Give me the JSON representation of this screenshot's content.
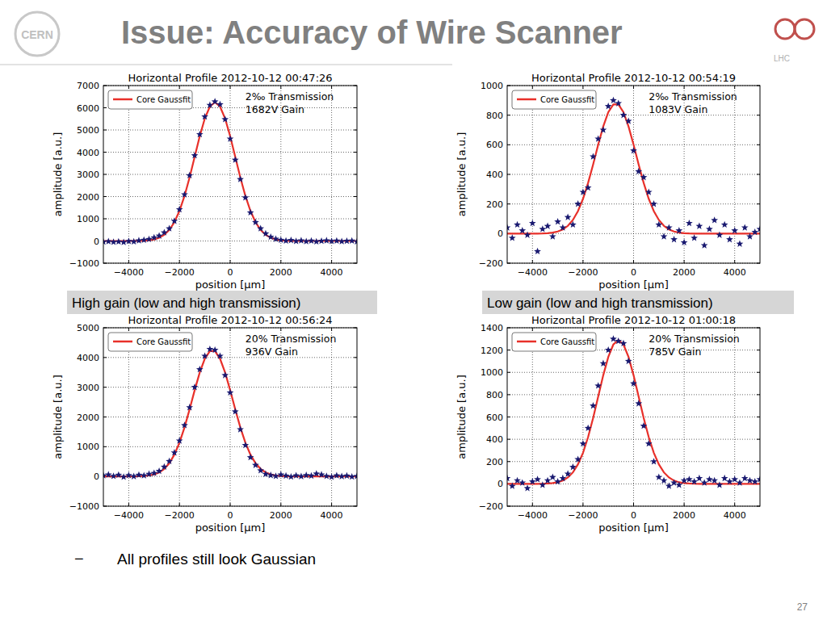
{
  "slide": {
    "title": "Issue: Accuracy of Wire Scanner",
    "logo_left": "CERN",
    "logo_right": "LHC",
    "captions": [
      "High gain (low and high transmission)",
      "Low gain (low and high transmission)"
    ],
    "bullet_marker": "−",
    "bullet": "All profiles still look Gaussian",
    "page_number": "27"
  },
  "chart_data": [
    {
      "type": "scatter",
      "title": "Horizontal Profile 2012-10-12 00:47:26",
      "x_label": "position [μm]",
      "y_label": "amplitude [a.u.]",
      "annotations": [
        "2‰ Transmission",
        "1682V Gain"
      ],
      "x": [
        -5000,
        -4800,
        -4600,
        -4400,
        -4200,
        -4000,
        -3800,
        -3600,
        -3400,
        -3200,
        -3000,
        -2800,
        -2600,
        -2400,
        -2200,
        -2000,
        -1800,
        -1600,
        -1400,
        -1200,
        -1000,
        -800,
        -600,
        -400,
        -200,
        0,
        200,
        400,
        600,
        800,
        1000,
        1200,
        1400,
        1600,
        1800,
        2000,
        2200,
        2400,
        2600,
        2800,
        3000,
        3200,
        3400,
        3600,
        3800,
        4000,
        4200,
        4400,
        4600,
        4800,
        5000
      ],
      "series": [
        {
          "type": "scatter",
          "marker": "star",
          "color": "#191970",
          "values": [
            -40,
            -20,
            -50,
            -30,
            -60,
            -10,
            -30,
            20,
            40,
            80,
            150,
            230,
            380,
            560,
            900,
            1420,
            2090,
            2950,
            3850,
            4800,
            5600,
            6120,
            6280,
            6150,
            5480,
            4600,
            3650,
            2780,
            1950,
            1280,
            840,
            560,
            330,
            180,
            90,
            40,
            10,
            30,
            -10,
            20,
            -20,
            10,
            -30,
            0,
            20,
            -10,
            10,
            -20,
            0,
            10,
            -30
          ]
        },
        {
          "name": "Core Gaussfit",
          "type": "line",
          "line_style": "solid",
          "color": "#e8302a",
          "values": [
            0,
            0,
            0,
            0,
            0,
            0,
            2,
            6,
            14,
            32,
            69,
            143,
            274,
            498,
            846,
            1352,
            2029,
            2861,
            3791,
            4718,
            5516,
            6056,
            6250,
            6056,
            5516,
            4718,
            3791,
            2861,
            2029,
            1352,
            846,
            498,
            274,
            143,
            69,
            32,
            14,
            6,
            2,
            0,
            0,
            0,
            0,
            0,
            0,
            0,
            0,
            0,
            0,
            0,
            0
          ]
        }
      ],
      "xlim": [
        -5000,
        5000
      ],
      "xticks": [
        {
          "value": -4000,
          "label": "−4000"
        },
        {
          "value": -2000,
          "label": "−2000"
        },
        0,
        2000,
        4000
      ],
      "ylim": [
        -1000,
        7000
      ],
      "yticks": [
        {
          "value": -1000,
          "label": "−1000"
        },
        0,
        1000,
        2000,
        3000,
        4000,
        5000,
        6000,
        7000
      ],
      "grid": true,
      "legend": "upper left"
    },
    {
      "type": "scatter",
      "title": "Horizontal Profile 2012-10-12 00:54:19",
      "x_label": "position [μm]",
      "y_label": "amplitude [a.u.]",
      "annotations": [
        "2‰ Transmission",
        "1083V Gain"
      ],
      "x": [
        -5000,
        -4800,
        -4600,
        -4400,
        -4200,
        -4000,
        -3800,
        -3600,
        -3400,
        -3200,
        -3000,
        -2800,
        -2600,
        -2400,
        -2200,
        -2000,
        -1800,
        -1600,
        -1400,
        -1200,
        -1000,
        -800,
        -600,
        -400,
        -200,
        0,
        200,
        400,
        600,
        800,
        1000,
        1200,
        1400,
        1600,
        1800,
        2000,
        2200,
        2400,
        2600,
        2800,
        3000,
        3200,
        3400,
        3600,
        3800,
        4000,
        4200,
        4400,
        4600,
        4800,
        5000
      ],
      "series": [
        {
          "type": "scatter",
          "marker": "star",
          "color": "#191970",
          "values": [
            40,
            -30,
            60,
            20,
            -10,
            70,
            -120,
            30,
            50,
            -20,
            80,
            40,
            110,
            60,
            200,
            280,
            310,
            520,
            640,
            700,
            860,
            900,
            880,
            800,
            760,
            560,
            420,
            380,
            280,
            200,
            60,
            -20,
            40,
            -40,
            20,
            -60,
            70,
            -30,
            50,
            -80,
            30,
            90,
            -10,
            60,
            -40,
            20,
            -70,
            40,
            -20,
            10,
            30
          ]
        },
        {
          "name": "Core Gaussfit",
          "type": "line",
          "line_style": "solid",
          "color": "#e8302a",
          "values": [
            0,
            0,
            0,
            0,
            0,
            0,
            0,
            1,
            3,
            7,
            14,
            28,
            52,
            92,
            152,
            235,
            342,
            467,
            600,
            724,
            820,
            873,
            873,
            820,
            724,
            600,
            467,
            342,
            235,
            152,
            92,
            52,
            28,
            14,
            7,
            3,
            1,
            0,
            0,
            0,
            0,
            0,
            0,
            0,
            0,
            0,
            0,
            0,
            0,
            0,
            0
          ]
        }
      ],
      "xlim": [
        -5000,
        5000
      ],
      "xticks": [
        {
          "value": -4000,
          "label": "−4000"
        },
        {
          "value": -2000,
          "label": "−2000"
        },
        0,
        2000,
        4000
      ],
      "ylim": [
        -200,
        1000
      ],
      "yticks": [
        {
          "value": -200,
          "label": "−200"
        },
        0,
        200,
        400,
        600,
        800,
        1000
      ],
      "grid": true,
      "legend": "upper left"
    },
    {
      "type": "scatter",
      "title": "Horizontal Profile 2012-10-12 00:56:24",
      "x_label": "position [μm]",
      "y_label": "amplitude [a.u.]",
      "annotations": [
        "20% Transmission",
        "936V Gain"
      ],
      "x": [
        -5000,
        -4800,
        -4600,
        -4400,
        -4200,
        -4000,
        -3800,
        -3600,
        -3400,
        -3200,
        -3000,
        -2800,
        -2600,
        -2400,
        -2200,
        -2000,
        -1800,
        -1600,
        -1400,
        -1200,
        -1000,
        -800,
        -600,
        -400,
        -200,
        0,
        200,
        400,
        600,
        800,
        1000,
        1200,
        1400,
        1600,
        1800,
        2000,
        2200,
        2400,
        2600,
        2800,
        3000,
        3200,
        3400,
        3600,
        3800,
        4000,
        4200,
        4400,
        4600,
        4800,
        5000
      ],
      "series": [
        {
          "type": "scatter",
          "marker": "star",
          "color": "#191970",
          "values": [
            30,
            60,
            10,
            50,
            -20,
            40,
            0,
            50,
            30,
            80,
            110,
            180,
            320,
            510,
            800,
            1200,
            1720,
            2320,
            3000,
            3600,
            4050,
            4280,
            4250,
            4050,
            3400,
            2820,
            2180,
            1580,
            1050,
            640,
            380,
            200,
            80,
            40,
            10,
            60,
            20,
            -10,
            30,
            0,
            40,
            20,
            90,
            60,
            10,
            -20,
            30,
            0,
            20,
            -10,
            10
          ]
        },
        {
          "name": "Core Gaussfit",
          "type": "line",
          "line_style": "solid",
          "color": "#e8302a",
          "values": [
            0,
            0,
            0,
            0,
            0,
            0,
            2,
            6,
            14,
            32,
            68,
            136,
            253,
            445,
            733,
            1135,
            1652,
            2257,
            2899,
            3496,
            3961,
            4216,
            4216,
            3961,
            3496,
            2899,
            2257,
            1652,
            1135,
            733,
            445,
            253,
            136,
            68,
            32,
            14,
            6,
            2,
            0,
            0,
            0,
            0,
            0,
            0,
            0,
            0,
            0,
            0,
            0,
            0,
            0
          ]
        }
      ],
      "xlim": [
        -5000,
        5000
      ],
      "xticks": [
        {
          "value": -4000,
          "label": "−4000"
        },
        {
          "value": -2000,
          "label": "−2000"
        },
        0,
        2000,
        4000
      ],
      "ylim": [
        -1000,
        5000
      ],
      "yticks": [
        {
          "value": -1000,
          "label": "−1000"
        },
        0,
        1000,
        2000,
        3000,
        4000,
        5000
      ],
      "grid": true,
      "legend": "upper left"
    },
    {
      "type": "scatter",
      "title": "Horizontal Profile 2012-10-12 01:00:18",
      "x_label": "position [μm]",
      "y_label": "amplitude [a.u.]",
      "annotations": [
        "20% Transmission",
        "785V Gain"
      ],
      "x": [
        -5000,
        -4800,
        -4600,
        -4400,
        -4200,
        -4000,
        -3800,
        -3600,
        -3400,
        -3200,
        -3000,
        -2800,
        -2600,
        -2400,
        -2200,
        -2000,
        -1800,
        -1600,
        -1400,
        -1200,
        -1000,
        -800,
        -600,
        -400,
        -200,
        0,
        200,
        400,
        600,
        800,
        1000,
        1200,
        1400,
        1600,
        1800,
        2000,
        2200,
        2400,
        2600,
        2800,
        3000,
        3200,
        3400,
        3600,
        3800,
        4000,
        4200,
        4400,
        4600,
        4800,
        5000
      ],
      "series": [
        {
          "type": "scatter",
          "marker": "star",
          "color": "#191970",
          "values": [
            50,
            -20,
            30,
            10,
            -40,
            20,
            40,
            -10,
            30,
            60,
            20,
            50,
            90,
            150,
            220,
            360,
            500,
            700,
            880,
            1080,
            1200,
            1300,
            1280,
            1260,
            1100,
            900,
            720,
            520,
            360,
            200,
            60,
            30,
            -20,
            10,
            -10,
            30,
            40,
            20,
            50,
            10,
            40,
            30,
            -10,
            50,
            20,
            40,
            10,
            50,
            30,
            20,
            40
          ]
        },
        {
          "name": "Core Gaussfit",
          "type": "line",
          "line_style": "solid",
          "color": "#e8302a",
          "values": [
            0,
            0,
            0,
            0,
            0,
            0,
            0,
            1,
            3,
            7,
            14,
            29,
            57,
            103,
            175,
            279,
            419,
            591,
            782,
            974,
            1138,
            1250,
            1290,
            1250,
            1138,
            974,
            782,
            591,
            419,
            279,
            175,
            103,
            57,
            29,
            14,
            7,
            3,
            1,
            0,
            0,
            0,
            0,
            0,
            0,
            0,
            0,
            0,
            0,
            0,
            0,
            0
          ]
        }
      ],
      "xlim": [
        -5000,
        5000
      ],
      "xticks": [
        {
          "value": -4000,
          "label": "−4000"
        },
        {
          "value": -2000,
          "label": "−2000"
        },
        0,
        2000,
        4000
      ],
      "ylim": [
        -200,
        1400
      ],
      "yticks": [
        {
          "value": -200,
          "label": "−200"
        },
        0,
        200,
        400,
        600,
        800,
        1000,
        1200,
        1400
      ],
      "grid": true,
      "legend": "upper left"
    }
  ]
}
